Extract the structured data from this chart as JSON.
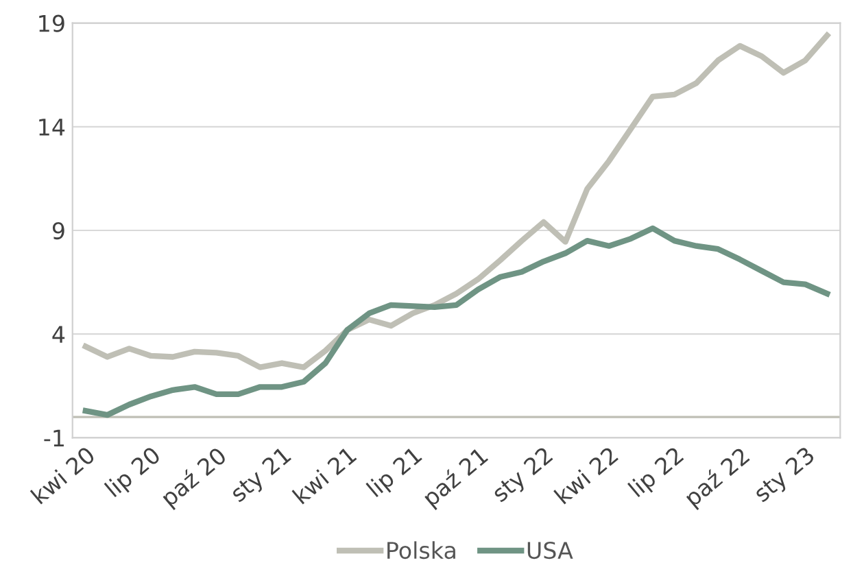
{
  "chart_data": {
    "type": "line",
    "categories": [
      "kwi 20",
      null,
      null,
      "lip 20",
      null,
      null,
      "paź 20",
      null,
      null,
      "sty 21",
      null,
      null,
      "kwi 21",
      null,
      null,
      "lip 21",
      null,
      null,
      "paź 21",
      null,
      null,
      "sty 22",
      null,
      null,
      "kwi 22",
      null,
      null,
      "lip 22",
      null,
      null,
      "paź 22",
      null,
      null,
      "sty 23",
      null
    ],
    "series": [
      {
        "name": "Polska",
        "color": "#bfbfb5",
        "values": [
          3.4,
          2.9,
          3.3,
          2.95,
          2.9,
          3.15,
          3.1,
          2.95,
          2.4,
          2.6,
          2.4,
          3.2,
          4.2,
          4.7,
          4.4,
          5.0,
          5.4,
          5.95,
          6.65,
          7.55,
          8.5,
          9.4,
          8.45,
          11.0,
          12.35,
          13.9,
          15.45,
          15.55,
          16.1,
          17.2,
          17.9,
          17.4,
          16.6,
          17.2,
          18.4
        ]
      },
      {
        "name": "USA",
        "color": "#6f9484",
        "values": [
          0.3,
          0.1,
          0.6,
          1.0,
          1.3,
          1.45,
          1.1,
          1.1,
          1.45,
          1.45,
          1.7,
          2.6,
          4.2,
          5.0,
          5.4,
          5.35,
          5.3,
          5.4,
          6.15,
          6.75,
          7.0,
          7.5,
          7.9,
          8.5,
          8.25,
          8.6,
          9.1,
          8.5,
          8.25,
          8.1,
          7.6,
          7.05,
          6.5,
          6.4,
          5.95
        ]
      }
    ],
    "ylim": [
      -1,
      19
    ],
    "yticks": [
      -1,
      4,
      9,
      14,
      19
    ],
    "grid": "y",
    "legend": "bottom",
    "line_style": "solid",
    "marker": "none",
    "ref_lines": [
      {
        "axis": "y",
        "value": 0,
        "color": "#bfbfb5"
      }
    ]
  }
}
